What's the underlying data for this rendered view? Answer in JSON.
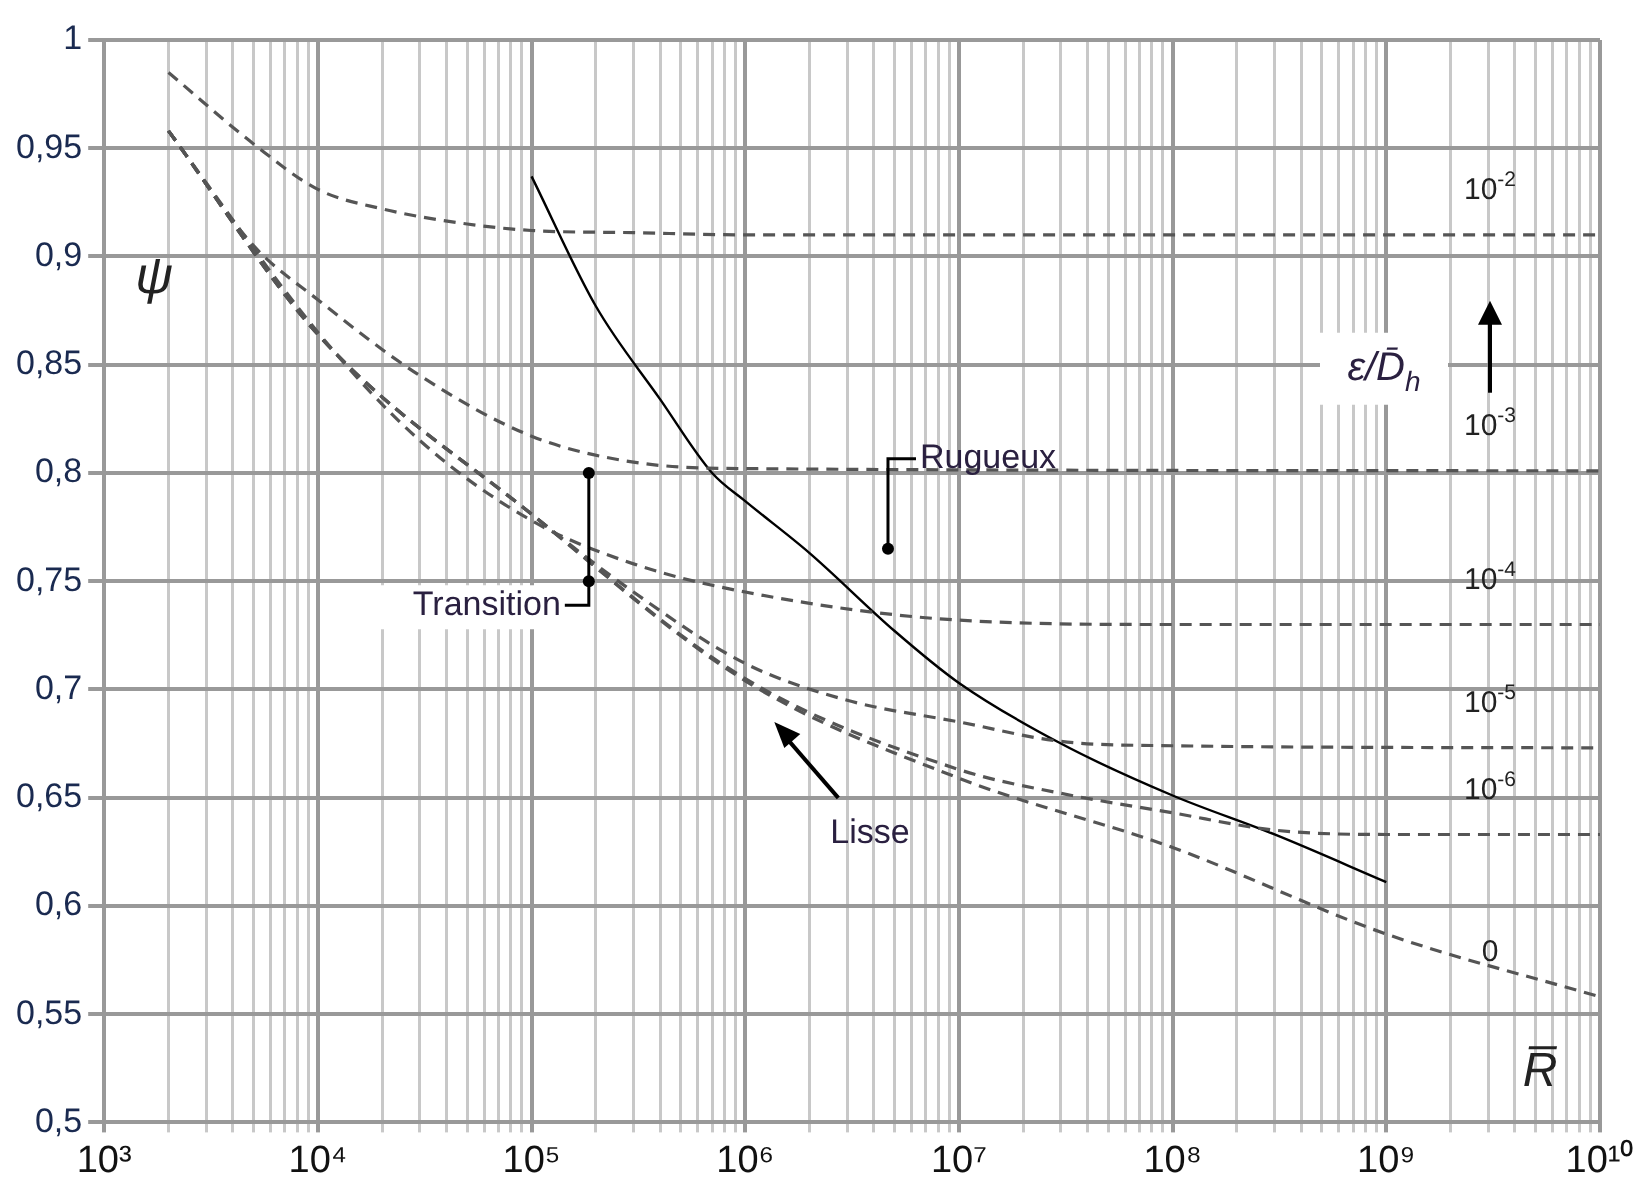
{
  "chart_data": {
    "type": "line",
    "xlabel": "R̅",
    "ylabel": "ψ",
    "log": "x",
    "grid": true,
    "legend": false,
    "marker": "none",
    "xlim": [
      1000,
      10000000000
    ],
    "ylim": [
      0.5,
      1
    ],
    "xticks": [
      {
        "value": 1000,
        "label": "10³"
      },
      {
        "value": 2000,
        "label": null
      },
      {
        "value": 3000,
        "label": null
      },
      {
        "value": 4000,
        "label": null
      },
      {
        "value": 5000,
        "label": null
      },
      {
        "value": 6000,
        "label": null
      },
      {
        "value": 7000,
        "label": null
      },
      {
        "value": 8000,
        "label": null
      },
      {
        "value": 9000,
        "label": null
      },
      {
        "value": 10000,
        "label": "10⁴"
      },
      {
        "value": 20000,
        "label": null
      },
      {
        "value": 30000,
        "label": null
      },
      {
        "value": 40000,
        "label": null
      },
      {
        "value": 50000,
        "label": null
      },
      {
        "value": 60000,
        "label": null
      },
      {
        "value": 70000,
        "label": null
      },
      {
        "value": 80000,
        "label": null
      },
      {
        "value": 90000,
        "label": null
      },
      {
        "value": 100000,
        "label": "10⁵"
      },
      {
        "value": 200000,
        "label": null
      },
      {
        "value": 300000,
        "label": null
      },
      {
        "value": 400000,
        "label": null
      },
      {
        "value": 500000,
        "label": null
      },
      {
        "value": 600000,
        "label": null
      },
      {
        "value": 700000,
        "label": null
      },
      {
        "value": 800000,
        "label": null
      },
      {
        "value": 900000,
        "label": null
      },
      {
        "value": 1000000,
        "label": "10⁶"
      },
      {
        "value": 2000000,
        "label": null
      },
      {
        "value": 3000000,
        "label": null
      },
      {
        "value": 4000000,
        "label": null
      },
      {
        "value": 5000000,
        "label": null
      },
      {
        "value": 6000000,
        "label": null
      },
      {
        "value": 7000000,
        "label": null
      },
      {
        "value": 8000000,
        "label": null
      },
      {
        "value": 9000000,
        "label": null
      },
      {
        "value": 10000000,
        "label": "10⁷"
      },
      {
        "value": 20000000,
        "label": null
      },
      {
        "value": 30000000,
        "label": null
      },
      {
        "value": 40000000,
        "label": null
      },
      {
        "value": 50000000,
        "label": null
      },
      {
        "value": 60000000,
        "label": null
      },
      {
        "value": 70000000,
        "label": null
      },
      {
        "value": 80000000,
        "label": null
      },
      {
        "value": 90000000,
        "label": null
      },
      {
        "value": 100000000,
        "label": "10⁸"
      },
      {
        "value": 200000000,
        "label": null
      },
      {
        "value": 300000000,
        "label": null
      },
      {
        "value": 400000000,
        "label": null
      },
      {
        "value": 500000000,
        "label": null
      },
      {
        "value": 600000000,
        "label": null
      },
      {
        "value": 700000000,
        "label": null
      },
      {
        "value": 800000000,
        "label": null
      },
      {
        "value": 900000000,
        "label": null
      },
      {
        "value": 1000000000,
        "label": "10⁹"
      },
      {
        "value": 2000000000,
        "label": null
      },
      {
        "value": 3000000000,
        "label": null
      },
      {
        "value": 4000000000,
        "label": null
      },
      {
        "value": 5000000000,
        "label": null
      },
      {
        "value": 6000000000,
        "label": null
      },
      {
        "value": 7000000000,
        "label": null
      },
      {
        "value": 8000000000,
        "label": null
      },
      {
        "value": 9000000000,
        "label": null
      },
      {
        "value": 10000000000,
        "label": "10¹⁰"
      }
    ],
    "yticks": [
      {
        "value": 0.5,
        "label": "0,5"
      },
      {
        "value": 0.55,
        "label": "0,55"
      },
      {
        "value": 0.6,
        "label": "0,6"
      },
      {
        "value": 0.65,
        "label": "0,65"
      },
      {
        "value": 0.7,
        "label": "0,7"
      },
      {
        "value": 0.75,
        "label": "0,75"
      },
      {
        "value": 0.8,
        "label": "0,8"
      },
      {
        "value": 0.85,
        "label": "0,85"
      },
      {
        "value": 0.9,
        "label": "0,9"
      },
      {
        "value": 0.95,
        "label": "0,95"
      },
      {
        "value": 1,
        "label": "1"
      }
    ],
    "series": [
      {
        "name": "10$^{-2}$",
        "color": "#555555",
        "line_style": "dashed",
        "x": [
          2000,
          5000,
          10000,
          20000,
          50000,
          100000,
          300000,
          1000000,
          10000000000
        ],
        "values": [
          0.985,
          0.952,
          0.931,
          0.922,
          0.915,
          0.912,
          0.911,
          0.91,
          0.91
        ]
      },
      {
        "name": "10$^{-3}$",
        "color": "#555555",
        "line_style": "dashed",
        "x": [
          2000,
          5000,
          10000,
          30000,
          100000,
          300000,
          1000000,
          10000000000
        ],
        "values": [
          0.958,
          0.905,
          0.88,
          0.845,
          0.817,
          0.805,
          0.802,
          0.801
        ]
      },
      {
        "name": "10$^{-4}$",
        "color": "#555555",
        "line_style": "dashed",
        "x": [
          2000,
          10000,
          30000,
          100000,
          300000,
          1000000,
          10000000,
          100000000,
          10000000000
        ],
        "values": [
          0.958,
          0.865,
          0.815,
          0.778,
          0.758,
          0.745,
          0.732,
          0.73,
          0.73
        ]
      },
      {
        "name": "10$^{-5}$",
        "color": "#555555",
        "line_style": "dashed",
        "x": [
          2000,
          10000,
          100000,
          300000,
          1000000,
          3000000,
          10000000,
          30000000,
          100000000,
          10000000000
        ],
        "values": [
          0.958,
          0.864,
          0.781,
          0.745,
          0.712,
          0.695,
          0.685,
          0.676,
          0.674,
          0.673
        ]
      },
      {
        "name": "10$^{-6}$",
        "color": "#555555",
        "line_style": "dashed",
        "x": [
          2000,
          10000,
          100000,
          1000000,
          10000000,
          30000000,
          100000000,
          300000000,
          1000000000,
          10000000000
        ],
        "values": [
          0.958,
          0.864,
          0.781,
          0.705,
          0.663,
          0.652,
          0.643,
          0.635,
          0.633,
          0.633
        ]
      },
      {
        "name": "0",
        "color": "#555555",
        "line_style": "dashed",
        "x": [
          2000,
          10000,
          100000,
          1000000,
          10000000,
          100000000,
          1000000000,
          10000000000
        ],
        "values": [
          0.958,
          0.864,
          0.781,
          0.704,
          0.659,
          0.627,
          0.587,
          0.558
        ]
      },
      {
        "color": "#000000",
        "line_style": "solid",
        "x": [
          100000,
          200000,
          400000,
          700000,
          1000000,
          2000000,
          5000000,
          10000000,
          30000000,
          100000000,
          300000000,
          1000000000
        ],
        "values": [
          0.937,
          0.877,
          0.834,
          0.8,
          0.787,
          0.763,
          0.727,
          0.703,
          0.675,
          0.651,
          0.633,
          0.611
        ]
      }
    ],
    "annotations": [
      "Rugueux",
      "Transition",
      "Lisse",
      "ε/D̄$_{h}$"
    ]
  }
}
